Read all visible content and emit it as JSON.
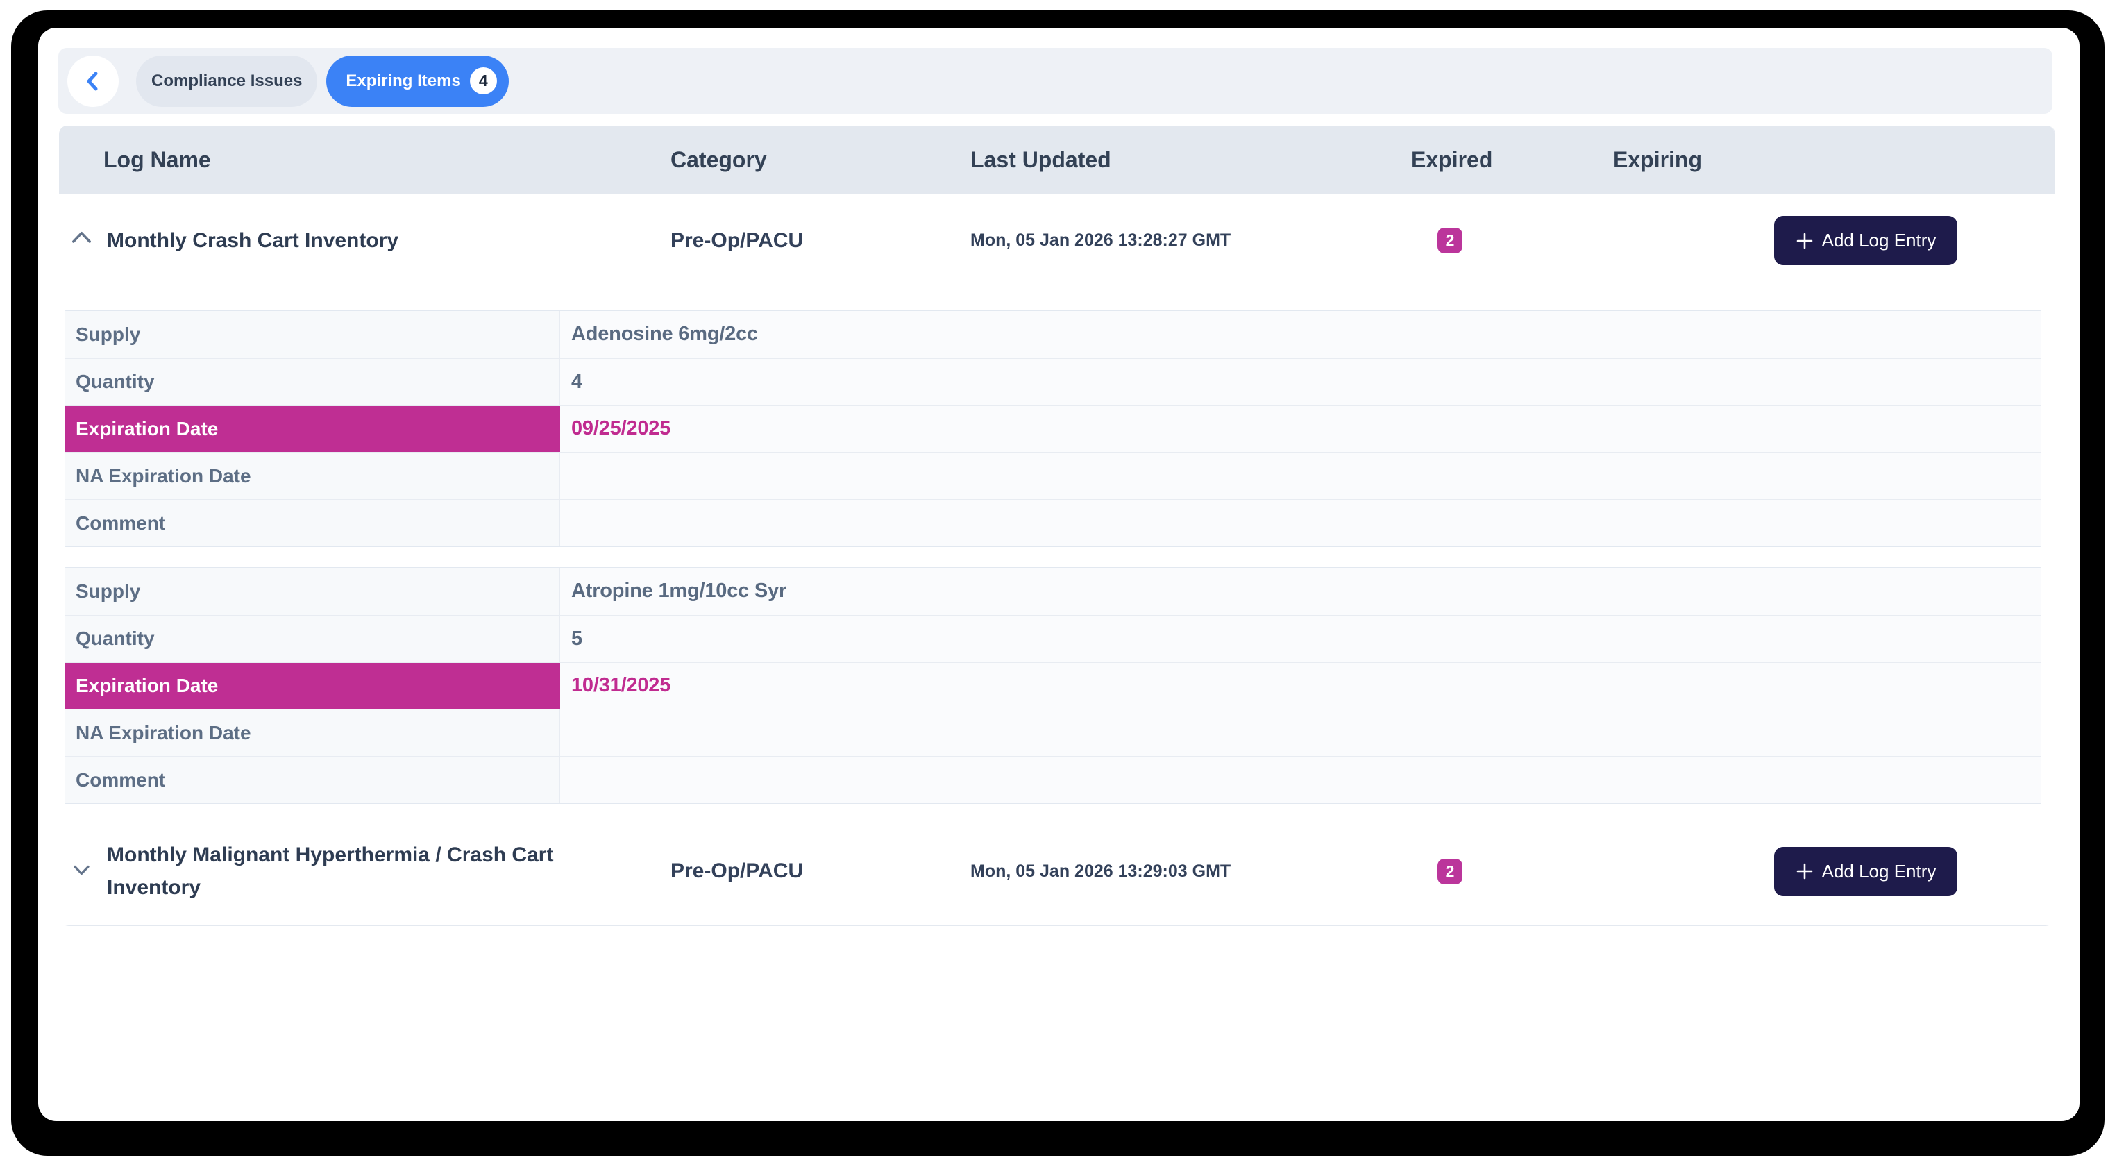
{
  "frame": {
    "bezel_color": "#000000",
    "screen_color": "#ffffff"
  },
  "toolbar": {
    "back_icon": "chevron-left",
    "tabs": [
      {
        "label": "Compliance Issues",
        "active": false
      },
      {
        "label": "Expiring Items",
        "badge": "4",
        "active": true
      }
    ],
    "accent_color": "#3b82f6"
  },
  "table": {
    "columns": {
      "log_name": "Log Name",
      "category": "Category",
      "last_updated": "Last Updated",
      "expired": "Expired",
      "expiring": "Expiring"
    },
    "add_entry_label": "Add Log Entry",
    "highlight_color": "#bf2e93",
    "rows": [
      {
        "name": "Monthly Crash Cart Inventory",
        "category": "Pre-Op/PACU",
        "last_updated": "Mon, 05 Jan 2026 13:28:27 GMT",
        "expired_count": "2",
        "expiring_count": "",
        "expanded": true,
        "entries": [
          {
            "fields": [
              {
                "label": "Supply",
                "value": "Adenosine 6mg/2cc",
                "highlight": false
              },
              {
                "label": "Quantity",
                "value": "4",
                "highlight": false
              },
              {
                "label": "Expiration Date",
                "value": "09/25/2025",
                "highlight": true
              },
              {
                "label": "NA Expiration Date",
                "value": "",
                "highlight": false
              },
              {
                "label": "Comment",
                "value": "",
                "highlight": false
              }
            ]
          },
          {
            "fields": [
              {
                "label": "Supply",
                "value": "Atropine 1mg/10cc Syr",
                "highlight": false
              },
              {
                "label": "Quantity",
                "value": "5",
                "highlight": false
              },
              {
                "label": "Expiration Date",
                "value": "10/31/2025",
                "highlight": true
              },
              {
                "label": "NA Expiration Date",
                "value": "",
                "highlight": false
              },
              {
                "label": "Comment",
                "value": "",
                "highlight": false
              }
            ]
          }
        ]
      },
      {
        "name": "Monthly Malignant Hyperthermia / Crash Cart Inventory",
        "category": "Pre-Op/PACU",
        "last_updated": "Mon, 05 Jan 2026 13:29:03 GMT",
        "expired_count": "2",
        "expiring_count": "",
        "expanded": false,
        "entries": []
      }
    ]
  }
}
